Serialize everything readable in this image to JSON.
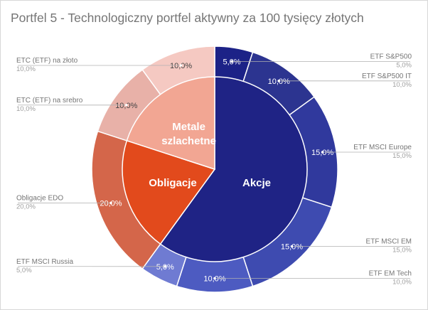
{
  "chart_data": {
    "type": "pie",
    "subtype": "nested-donut",
    "title": "Portfel 5 - Technologiczny portfel aktywny za 100 tysięcy złotych",
    "outer_ring": [
      {
        "name": "ETF S&P500",
        "value": 5.0,
        "value_label": "5,0%",
        "color": "#1c2287",
        "text_color": "#ffffff"
      },
      {
        "name": "ETF S&P500 IT",
        "value": 10.0,
        "value_label": "10,0%",
        "color": "#2c3490",
        "text_color": "#ffffff"
      },
      {
        "name": "ETF MSCI Europe",
        "value": 15.0,
        "value_label": "15,0%",
        "color": "#30399d",
        "text_color": "#ffffff"
      },
      {
        "name": "ETF MSCI EM",
        "value": 15.0,
        "value_label": "15,0%",
        "color": "#3e4bb0",
        "text_color": "#ffffff"
      },
      {
        "name": "ETF EM Tech",
        "value": 10.0,
        "value_label": "10,0%",
        "color": "#4d5bc1",
        "text_color": "#ffffff"
      },
      {
        "name": "ETF MSCI Russia",
        "value": 5.0,
        "value_label": "5,0%",
        "color": "#6f7bd2",
        "text_color": "#ffffff"
      },
      {
        "name": "Obligacje EDO",
        "value": 20.0,
        "value_label": "20,0%",
        "color": "#d4664a",
        "text_color": "#ffffff"
      },
      {
        "name": "ETC (ETF) na srebro",
        "value": 10.0,
        "value_label": "10,0%",
        "color": "#e8b1a8",
        "text_color": "#444444"
      },
      {
        "name": "ETC (ETF) na złoto",
        "value": 10.0,
        "value_label": "10,0%",
        "color": "#f5c9c2",
        "text_color": "#444444"
      }
    ],
    "inner_pie": [
      {
        "name": "Akcje",
        "value": 60.0,
        "color": "#1f2385"
      },
      {
        "name": "Obligacje",
        "value": 20.0,
        "color": "#e24a1c"
      },
      {
        "name": "Metale szlachetne",
        "value": 20.0,
        "name_lines": [
          "Metale",
          "szlachetne"
        ],
        "color": "#f2a693"
      }
    ],
    "legend": "outside-callouts"
  },
  "colors": {
    "background": "#ffffff",
    "title_text": "#757575",
    "callout_line": "#b0b0b0"
  }
}
